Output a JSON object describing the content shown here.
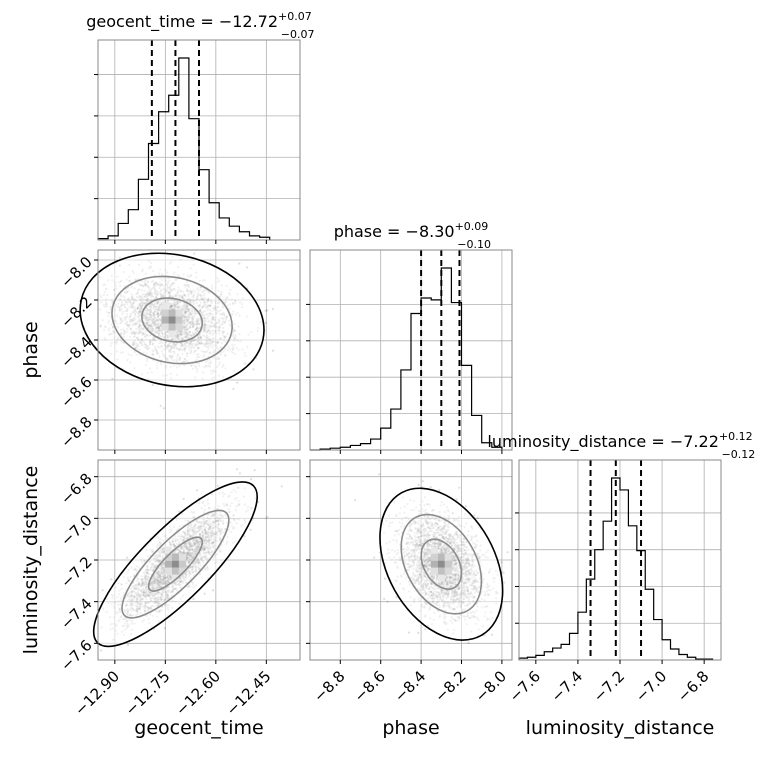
{
  "chart_data": {
    "type": "corner",
    "parameters": [
      {
        "name": "geocent_time",
        "axis_label": "geocent_time",
        "title_main": "geocent_time = −12.72",
        "title_sup": "+0.07",
        "title_sub": "−0.07",
        "range": [
          -12.95,
          -12.35
        ],
        "ticks": [
          -12.9,
          -12.75,
          -12.6,
          -12.45
        ],
        "tick_labels": [
          "−12.90",
          "−12.75",
          "−12.60",
          "−12.45"
        ],
        "quantiles": [
          -12.79,
          -12.72,
          -12.65
        ],
        "histogram": {
          "bin_edges": [
            -12.95,
            -12.92,
            -12.89,
            -12.86,
            -12.83,
            -12.8,
            -12.77,
            -12.74,
            -12.71,
            -12.68,
            -12.65,
            -12.62,
            -12.59,
            -12.56,
            -12.53,
            -12.5,
            -12.47,
            -12.44
          ],
          "counts": [
            1,
            3,
            12,
            22,
            44,
            70,
            93,
            105,
            132,
            88,
            51,
            27,
            16,
            10,
            6,
            3,
            2
          ]
        }
      },
      {
        "name": "phase",
        "axis_label": "phase",
        "title_main": "phase = −8.30",
        "title_sup": "+0.09",
        "title_sub": "−0.10",
        "range": [
          -8.95,
          -7.95
        ],
        "ticks": [
          -8.8,
          -8.6,
          -8.4,
          -8.2,
          -8.0
        ],
        "tick_labels": [
          "−8.8",
          "−8.6",
          "−8.4",
          "−8.2",
          "−8.0"
        ],
        "quantiles": [
          -8.4,
          -8.3,
          -8.21
        ],
        "histogram": {
          "bin_edges": [
            -8.95,
            -8.9,
            -8.85,
            -8.8,
            -8.75,
            -8.7,
            -8.65,
            -8.6,
            -8.55,
            -8.5,
            -8.45,
            -8.4,
            -8.35,
            -8.3,
            -8.25,
            -8.2,
            -8.15,
            -8.1,
            -8.05,
            -8.0
          ],
          "counts": [
            0,
            1,
            2,
            3,
            5,
            7,
            12,
            24,
            45,
            88,
            150,
            167,
            165,
            200,
            162,
            93,
            38,
            8,
            3
          ]
        }
      },
      {
        "name": "luminosity_distance",
        "axis_label": "luminosity_distance",
        "title_main": "luminosity_distance = −7.22",
        "title_sup": "+0.12",
        "title_sub": "−0.12",
        "range": [
          -7.68,
          -6.72
        ],
        "ticks": [
          -7.6,
          -7.4,
          -7.2,
          -7.0,
          -6.8
        ],
        "tick_labels": [
          "−7.6",
          "−7.4",
          "−7.2",
          "−7.0",
          "−6.8"
        ],
        "quantiles": [
          -7.34,
          -7.22,
          -7.1
        ],
        "histogram": {
          "bin_edges": [
            -7.68,
            -7.64,
            -7.6,
            -7.56,
            -7.52,
            -7.48,
            -7.44,
            -7.4,
            -7.36,
            -7.32,
            -7.28,
            -7.24,
            -7.2,
            -7.16,
            -7.12,
            -7.08,
            -7.04,
            -7.0,
            -6.96,
            -6.92,
            -6.88,
            -6.84,
            -6.8,
            -6.76
          ],
          "counts": [
            2,
            3,
            5,
            9,
            13,
            17,
            29,
            52,
            88,
            120,
            151,
            198,
            185,
            146,
            119,
            77,
            44,
            22,
            12,
            6,
            3,
            1,
            1
          ]
        }
      }
    ],
    "pairs": [
      {
        "x": "geocent_time",
        "y": "phase",
        "center": [
          -12.73,
          -8.3
        ],
        "spread": [
          0.09,
          0.11
        ],
        "corr": -0.15,
        "points": 2600
      },
      {
        "x": "geocent_time",
        "y": "luminosity_distance",
        "center": [
          -12.72,
          -7.22
        ],
        "spread": [
          0.08,
          0.13
        ],
        "corr": 0.82,
        "points": 2600
      },
      {
        "x": "phase",
        "y": "luminosity_distance",
        "center": [
          -8.3,
          -7.22
        ],
        "spread": [
          0.1,
          0.12
        ],
        "corr": -0.35,
        "points": 2600
      }
    ],
    "grid": true,
    "contour_levels": [
      0.39,
      0.86,
      0.99
    ]
  }
}
